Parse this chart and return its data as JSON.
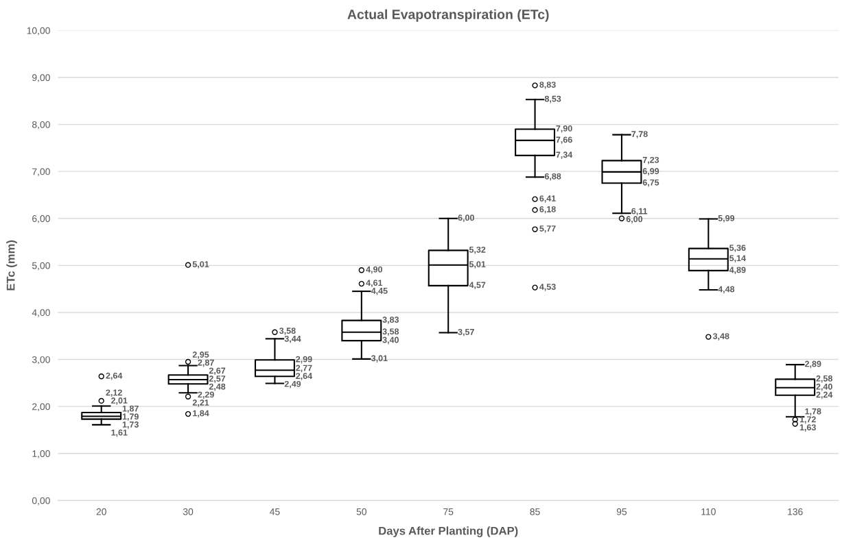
{
  "chart_data": {
    "type": "box",
    "title": "Actual Evapotranspiration (ETc)",
    "xlabel": "Days After Planting (DAP)",
    "ylabel": "ETc (mm)",
    "categories": [
      "20",
      "30",
      "45",
      "50",
      "75",
      "85",
      "95",
      "110",
      "136"
    ],
    "boxes": [
      {
        "low": 1.61,
        "q1": 1.73,
        "median": 1.79,
        "q3": 1.87,
        "high": 2.01
      },
      {
        "low": 2.29,
        "q1": 2.48,
        "median": 2.57,
        "q3": 2.67,
        "high": 2.87
      },
      {
        "low": 2.49,
        "q1": 2.64,
        "median": 2.77,
        "q3": 2.99,
        "high": 3.44
      },
      {
        "low": 3.01,
        "q1": 3.4,
        "median": 3.58,
        "q3": 3.83,
        "high": 4.45
      },
      {
        "low": 3.57,
        "q1": 4.57,
        "median": 5.01,
        "q3": 5.32,
        "high": 6.0
      },
      {
        "low": 6.88,
        "q1": 7.34,
        "median": 7.66,
        "q3": 7.9,
        "high": 8.53
      },
      {
        "low": 6.11,
        "q1": 6.75,
        "median": 6.99,
        "q3": 7.23,
        "high": 7.78
      },
      {
        "low": 4.48,
        "q1": 4.89,
        "median": 5.14,
        "q3": 5.36,
        "high": 5.99
      },
      {
        "low": 1.78,
        "q1": 2.24,
        "median": 2.4,
        "q3": 2.58,
        "high": 2.89
      }
    ],
    "series": [
      {
        "type": "scatter",
        "color": "#000000",
        "x": [
          "20",
          "20",
          "30",
          "30",
          "30",
          "30",
          "45",
          "50",
          "50",
          "85",
          "85",
          "85",
          "85",
          "85",
          "95",
          "110",
          "136",
          "136"
        ],
        "values": [
          2.64,
          2.12,
          5.01,
          2.95,
          2.21,
          1.84,
          3.58,
          4.9,
          4.61,
          8.83,
          6.41,
          6.18,
          5.77,
          4.53,
          6.0,
          3.48,
          1.72,
          1.63
        ],
        "value_labels": [
          "2,64",
          "2,12",
          "5,01",
          "2,95",
          "2,21",
          "1,84",
          "3,58",
          "4,90",
          "4,61",
          "8,83",
          "6,41",
          "6,18",
          "5,77",
          "4,53",
          "6,00",
          "3,48",
          "1,72",
          "1,63"
        ]
      }
    ],
    "annotations": [
      {
        "text": "2,01",
        "x": "20",
        "y": 2.01
      },
      {
        "text": "1,87",
        "x": "20",
        "y": 1.87
      },
      {
        "text": "1,79",
        "x": "20",
        "y": 1.79
      },
      {
        "text": "1,73",
        "x": "20",
        "y": 1.73
      },
      {
        "text": "1,61",
        "x": "20",
        "y": 1.61
      },
      {
        "text": "2,87",
        "x": "30",
        "y": 2.87
      },
      {
        "text": "2,67",
        "x": "30",
        "y": 2.67
      },
      {
        "text": "2,57",
        "x": "30",
        "y": 2.57
      },
      {
        "text": "2,48",
        "x": "30",
        "y": 2.48
      },
      {
        "text": "2,29",
        "x": "30",
        "y": 2.29
      },
      {
        "text": "3,44",
        "x": "45",
        "y": 3.44
      },
      {
        "text": "2,99",
        "x": "45",
        "y": 2.99
      },
      {
        "text": "2,77",
        "x": "45",
        "y": 2.77
      },
      {
        "text": "2,64",
        "x": "45",
        "y": 2.64
      },
      {
        "text": "2,49",
        "x": "45",
        "y": 2.49
      },
      {
        "text": "4,45",
        "x": "50",
        "y": 4.45
      },
      {
        "text": "3,83",
        "x": "50",
        "y": 3.83
      },
      {
        "text": "3,58",
        "x": "50",
        "y": 3.58
      },
      {
        "text": "3,40",
        "x": "50",
        "y": 3.4
      },
      {
        "text": "3,01",
        "x": "50",
        "y": 3.01
      },
      {
        "text": "6,00",
        "x": "75",
        "y": 6.0
      },
      {
        "text": "5,32",
        "x": "75",
        "y": 5.32
      },
      {
        "text": "5,01",
        "x": "75",
        "y": 5.01
      },
      {
        "text": "4,57",
        "x": "75",
        "y": 4.57
      },
      {
        "text": "3,57",
        "x": "75",
        "y": 3.57
      },
      {
        "text": "8,53",
        "x": "85",
        "y": 8.53
      },
      {
        "text": "7,90",
        "x": "85",
        "y": 7.9
      },
      {
        "text": "7,66",
        "x": "85",
        "y": 7.66
      },
      {
        "text": "7,34",
        "x": "85",
        "y": 7.34
      },
      {
        "text": "6,88",
        "x": "85",
        "y": 6.88
      },
      {
        "text": "7,78",
        "x": "95",
        "y": 7.78
      },
      {
        "text": "7,23",
        "x": "95",
        "y": 7.23
      },
      {
        "text": "6,99",
        "x": "95",
        "y": 6.99
      },
      {
        "text": "6,75",
        "x": "95",
        "y": 6.75
      },
      {
        "text": "6,11",
        "x": "95",
        "y": 6.11
      },
      {
        "text": "5,99",
        "x": "110",
        "y": 5.99
      },
      {
        "text": "5,36",
        "x": "110",
        "y": 5.36
      },
      {
        "text": "5,14",
        "x": "110",
        "y": 5.14
      },
      {
        "text": "4,89",
        "x": "110",
        "y": 4.89
      },
      {
        "text": "4,48",
        "x": "110",
        "y": 4.48
      },
      {
        "text": "2,89",
        "x": "136",
        "y": 2.89
      },
      {
        "text": "2,58",
        "x": "136",
        "y": 2.58
      },
      {
        "text": "2,40",
        "x": "136",
        "y": 2.4
      },
      {
        "text": "2,24",
        "x": "136",
        "y": 2.24
      },
      {
        "text": "1,78",
        "x": "136",
        "y": 1.78
      }
    ],
    "ylim": [
      0,
      10
    ],
    "yticks": [
      {
        "value": 0,
        "label": "0,00"
      },
      {
        "value": 1,
        "label": "1,00"
      },
      {
        "value": 2,
        "label": "2,00"
      },
      {
        "value": 3,
        "label": "3,00"
      },
      {
        "value": 4,
        "label": "4,00"
      },
      {
        "value": 5,
        "label": "5,00"
      },
      {
        "value": 6,
        "label": "6,00"
      },
      {
        "value": 7,
        "label": "7,00"
      },
      {
        "value": 8,
        "label": "8,00"
      },
      {
        "value": 9,
        "label": "9,00"
      },
      {
        "value": 10,
        "label": "10,00"
      }
    ],
    "grid": "y",
    "marker": "circle",
    "legend": false
  }
}
